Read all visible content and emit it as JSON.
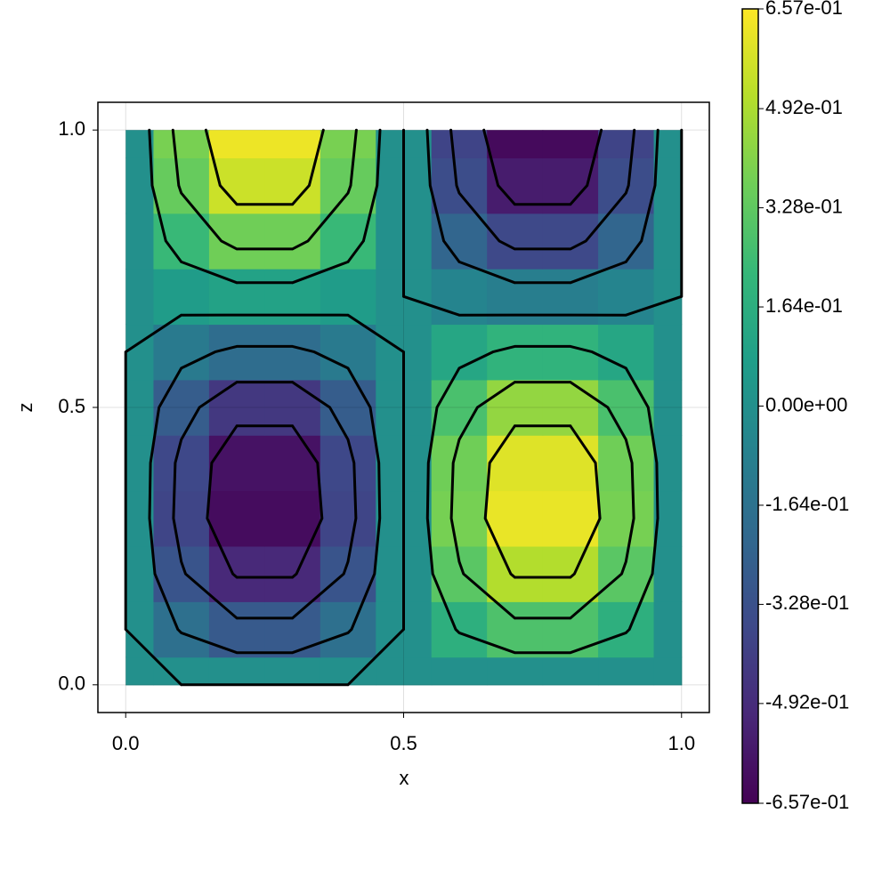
{
  "chart_data": {
    "type": "heatmap-contour",
    "xlabel": "x",
    "ylabel": "z",
    "x": [
      0,
      0.1,
      0.2,
      0.3,
      0.4,
      0.5,
      0.6,
      0.7,
      0.8,
      0.9,
      1.0
    ],
    "y": [
      0,
      0.1,
      0.2,
      0.3,
      0.4,
      0.5,
      0.6,
      0.7,
      0.8,
      0.9,
      1.0
    ],
    "values": [
      [
        0,
        0,
        0,
        0,
        0,
        0,
        0,
        0,
        0,
        0,
        0
      ],
      [
        0,
        -0.175,
        -0.283,
        -0.283,
        -0.175,
        0,
        0.175,
        0.283,
        0.283,
        0.175,
        0
      ],
      [
        0,
        -0.313,
        -0.506,
        -0.506,
        -0.313,
        0,
        0.313,
        0.506,
        0.506,
        0.313,
        0
      ],
      [
        0,
        -0.382,
        -0.617,
        -0.617,
        -0.382,
        0,
        0.382,
        0.617,
        0.617,
        0.382,
        0
      ],
      [
        0,
        -0.368,
        -0.594,
        -0.594,
        -0.368,
        0,
        0.368,
        0.594,
        0.594,
        0.368,
        0
      ],
      [
        0,
        -0.273,
        -0.441,
        -0.441,
        -0.273,
        0,
        0.273,
        0.441,
        0.441,
        0.273,
        0
      ],
      [
        0,
        -0.119,
        -0.193,
        -0.193,
        -0.119,
        0,
        0.119,
        0.193,
        0.193,
        0.119,
        0
      ],
      [
        0,
        0.06,
        0.097,
        0.097,
        0.06,
        0,
        -0.06,
        -0.097,
        -0.097,
        -0.06,
        0
      ],
      [
        0,
        0.227,
        0.367,
        0.367,
        0.227,
        0,
        -0.227,
        -0.367,
        -0.367,
        -0.227,
        0
      ],
      [
        0,
        0.344,
        0.556,
        0.556,
        0.344,
        0,
        -0.344,
        -0.556,
        -0.556,
        -0.344,
        0
      ],
      [
        0,
        0.386,
        0.625,
        0.625,
        0.386,
        0,
        -0.386,
        -0.625,
        -0.625,
        -0.386,
        0
      ]
    ],
    "colormap": "viridis",
    "levels": [
      -0.492,
      -0.328,
      -0.164,
      0,
      0.164,
      0.328,
      0.492
    ],
    "contour_color": "#000000",
    "xlim": [
      -0.05,
      1.05
    ],
    "ylim": [
      -0.05,
      1.05
    ],
    "xticks": [
      {
        "value": 0,
        "label": "0.0"
      },
      0.5,
      {
        "value": 1,
        "label": "1.0"
      }
    ],
    "yticks": [
      {
        "value": 0,
        "label": "0.0"
      },
      0.5,
      {
        "value": 1,
        "label": "1.0"
      }
    ],
    "grid": true,
    "clim": [
      -0.657,
      0.657
    ],
    "cticks": [
      {
        "value": -0.657,
        "label": "-6.57e-01"
      },
      {
        "value": -0.492,
        "label": "-4.92e-01"
      },
      {
        "value": -0.328,
        "label": "-3.28e-01"
      },
      {
        "value": -0.164,
        "label": "-1.64e-01"
      },
      {
        "value": 0,
        "label": "0.00e+00"
      },
      {
        "value": 0.164,
        "label": "1.64e-01"
      },
      {
        "value": 0.328,
        "label": "3.28e-01"
      },
      {
        "value": 0.492,
        "label": "4.92e-01"
      },
      {
        "value": 0.657,
        "label": "6.57e-01"
      }
    ]
  }
}
